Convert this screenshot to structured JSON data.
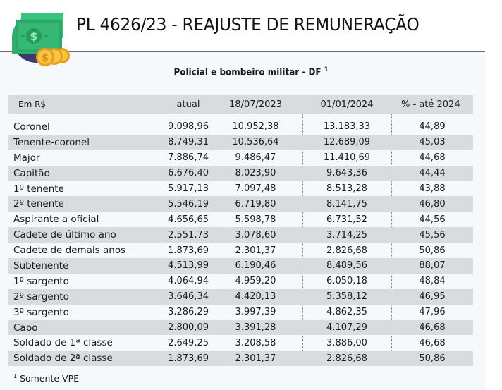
{
  "header": {
    "title": "PL 4626/23 - REAJUSTE DE REMUNERAÇÃO",
    "logo_icon": "money-bills-coins-icon"
  },
  "table": {
    "subtitle": "Policial e bombeiro militar - DF",
    "subtitle_footnote_mark": "1",
    "columns": [
      "Em R$",
      "atual",
      "18/07/2023",
      "01/01/2024",
      "% - até 2024"
    ],
    "rows": [
      {
        "cargo": "Coronel",
        "atual": "9.098,96",
        "jul2023": "10.952,38",
        "jan2024": "13.183,33",
        "pct": "44,89"
      },
      {
        "cargo": "Tenente-coronel",
        "atual": "8.749,31",
        "jul2023": "10.536,64",
        "jan2024": "12.689,09",
        "pct": "45,03"
      },
      {
        "cargo": "Major",
        "atual": "7.886,74",
        "jul2023": "9.486,47",
        "jan2024": "11.410,69",
        "pct": "44,68"
      },
      {
        "cargo": "Capitão",
        "atual": "6.676,40",
        "jul2023": "8.023,90",
        "jan2024": "9.643,36",
        "pct": "44,44"
      },
      {
        "cargo": "1º tenente",
        "atual": "5.917,13",
        "jul2023": "7.097,48",
        "jan2024": "8.513,28",
        "pct": "43,88"
      },
      {
        "cargo": "2º tenente",
        "atual": "5.546,19",
        "jul2023": "6.719,80",
        "jan2024": "8.141,75",
        "pct": "46,80"
      },
      {
        "cargo": "Aspirante a oficial",
        "atual": "4.656,65",
        "jul2023": "5.598,78",
        "jan2024": "6.731,52",
        "pct": "44,56"
      },
      {
        "cargo": "Cadete de último ano",
        "atual": "2.551,73",
        "jul2023": "3.078,60",
        "jan2024": "3.714,25",
        "pct": "45,56"
      },
      {
        "cargo": "Cadete de demais anos",
        "atual": "1.873,69",
        "jul2023": "2.301,37",
        "jan2024": "2.826,68",
        "pct": "50,86"
      },
      {
        "cargo": "Subtenente",
        "atual": "4.513,99",
        "jul2023": "6.190,46",
        "jan2024": "8.489,56",
        "pct": "88,07"
      },
      {
        "cargo": "1º sargento",
        "atual": "4.064,94",
        "jul2023": "4.959,20",
        "jan2024": "6.050,18",
        "pct": "48,84"
      },
      {
        "cargo": "2º sargento",
        "atual": "3.646,34",
        "jul2023": "4.420,13",
        "jan2024": "5.358,12",
        "pct": "46,95"
      },
      {
        "cargo": "3º sargento",
        "atual": "3.286,29",
        "jul2023": "3.997,39",
        "jan2024": "4.862,35",
        "pct": "47,96"
      },
      {
        "cargo": "Cabo",
        "atual": "2.800,09",
        "jul2023": "3.391,28",
        "jan2024": "4.107,29",
        "pct": "46,68"
      },
      {
        "cargo": "Soldado de 1ª classe",
        "atual": "2.649,25",
        "jul2023": "3.208,58",
        "jan2024": "3.886,00",
        "pct": "46,68"
      },
      {
        "cargo": "Soldado de 2ª classe",
        "atual": "1.873,69",
        "jul2023": "2.301,37",
        "jan2024": "2.826,68",
        "pct": "50,86"
      }
    ],
    "footnote_mark": "1",
    "footnote": "Somente VPE"
  },
  "colors": {
    "stripe": "#d8dcdf",
    "panel_bg": "#f5f9fc",
    "rule": "#6e6e6e",
    "bill_green": "#2fae6c",
    "coin_gold": "#f5b82e",
    "circle_navy": "#3b3a6b"
  }
}
